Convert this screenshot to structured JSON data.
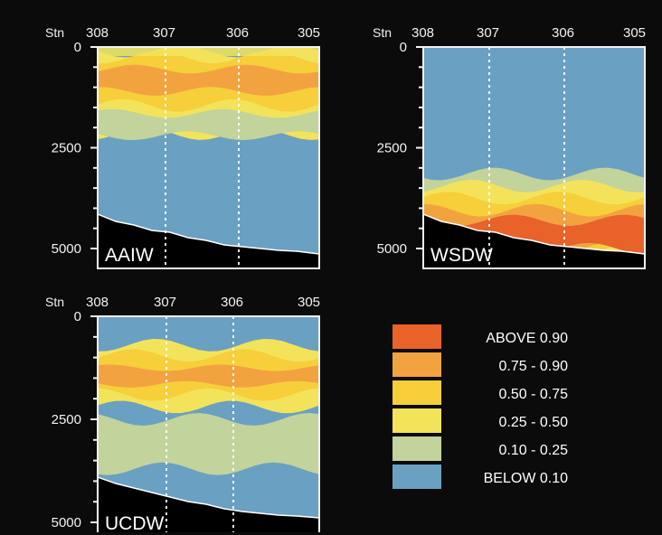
{
  "chart_data": {
    "type": "heatmap",
    "stn_word": "Stn",
    "stations": [
      "308",
      "307",
      "306",
      "305"
    ],
    "depth_ticks": [
      "0",
      "2500",
      "5000"
    ],
    "depth_range": [
      0,
      5000
    ],
    "legend": [
      {
        "label": "ABOVE 0.90",
        "color": "#e8622a"
      },
      {
        "label": "0.75 - 0.90",
        "color": "#f2a340"
      },
      {
        "label": "0.50 - 0.75",
        "color": "#f6cf3a"
      },
      {
        "label": "0.25 - 0.50",
        "color": "#f3e35a"
      },
      {
        "label": "0.10 - 0.25",
        "color": "#c2d39c"
      },
      {
        "label": "BELOW 0.10",
        "color": "#6aa0c2"
      }
    ],
    "panels": [
      {
        "name": "AAIW",
        "layers": [
          {
            "class": "0.25 - 0.50",
            "top": 100,
            "bottom": 2150
          },
          {
            "class": "0.50 - 0.75",
            "top": 250,
            "bottom": 1450
          },
          {
            "class": "0.75 - 0.90",
            "top": 550,
            "bottom": 1100
          },
          {
            "class": "0.10 - 0.25",
            "top": 1650,
            "bottom": 2200
          }
        ]
      },
      {
        "name": "WSDW",
        "layers": [
          {
            "class": "0.10 - 0.25",
            "top": 3150,
            "bottom": 5000
          },
          {
            "class": "0.25 - 0.50",
            "top": 3450,
            "bottom": 5000
          },
          {
            "class": "0.50 - 0.75",
            "top": 3750,
            "bottom": 5000
          },
          {
            "class": "0.75 - 0.90",
            "top": 4050,
            "bottom": 5000
          },
          {
            "class": "ABOVE 0.90",
            "top": 4300,
            "bottom": 5000
          }
        ]
      },
      {
        "name": "UCDW",
        "layers": [
          {
            "class": "0.25 - 0.50",
            "top": 700,
            "bottom": 2200
          },
          {
            "class": "0.50 - 0.75",
            "top": 950,
            "bottom": 1900
          },
          {
            "class": "0.75 - 0.90",
            "top": 1250,
            "bottom": 1650
          },
          {
            "class": "0.10 - 0.25",
            "top": 2500,
            "bottom": 3700
          }
        ]
      }
    ]
  }
}
